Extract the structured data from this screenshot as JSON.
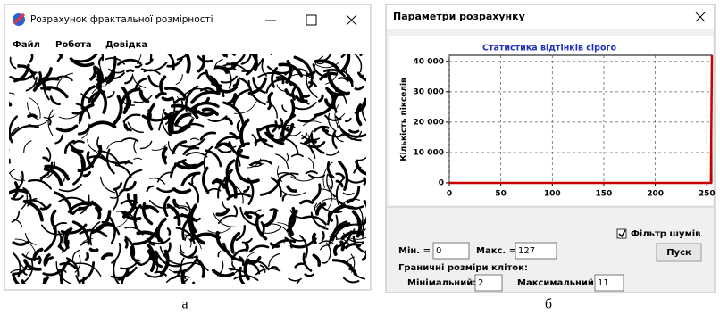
{
  "left_window": {
    "title": "Розрахунок фрактальної розмірності",
    "menu": [
      "Файл",
      "Робота",
      "Довідка"
    ],
    "caption": "а"
  },
  "right_window": {
    "title": "Параметри розрахунку",
    "chart": {
      "type": "line",
      "title": "Статистика відтінків сірого",
      "y_label": "Кількість пікселів",
      "x": [
        0,
        254,
        255
      ],
      "values": [
        0,
        0,
        42000
      ],
      "color": "#cc0000",
      "xlim": [
        0,
        255
      ],
      "ylim": [
        0,
        42000
      ],
      "xticks": [
        0,
        50,
        100,
        150,
        200,
        250
      ],
      "yticks": [
        0,
        {
          "value": 10000,
          "label": "10 000"
        },
        {
          "value": 20000,
          "label": "20 000"
        },
        {
          "value": 30000,
          "label": "30 000"
        },
        {
          "value": 40000,
          "label": "40 000"
        }
      ],
      "grid": true
    },
    "noise_filter": {
      "label": "Фільтр шумів",
      "checked": true
    },
    "min": {
      "label": "Мін. =",
      "value": "0"
    },
    "max": {
      "label": "Макс. =",
      "value": "127"
    },
    "cell_sizes": {
      "label": "Граничні розміри кліток:",
      "minimal": {
        "label": "Мінімальний:",
        "value": "2"
      },
      "maximal": {
        "label": "Максимальний:",
        "value": "11"
      }
    },
    "start_button": "Пуск",
    "caption": "б"
  }
}
